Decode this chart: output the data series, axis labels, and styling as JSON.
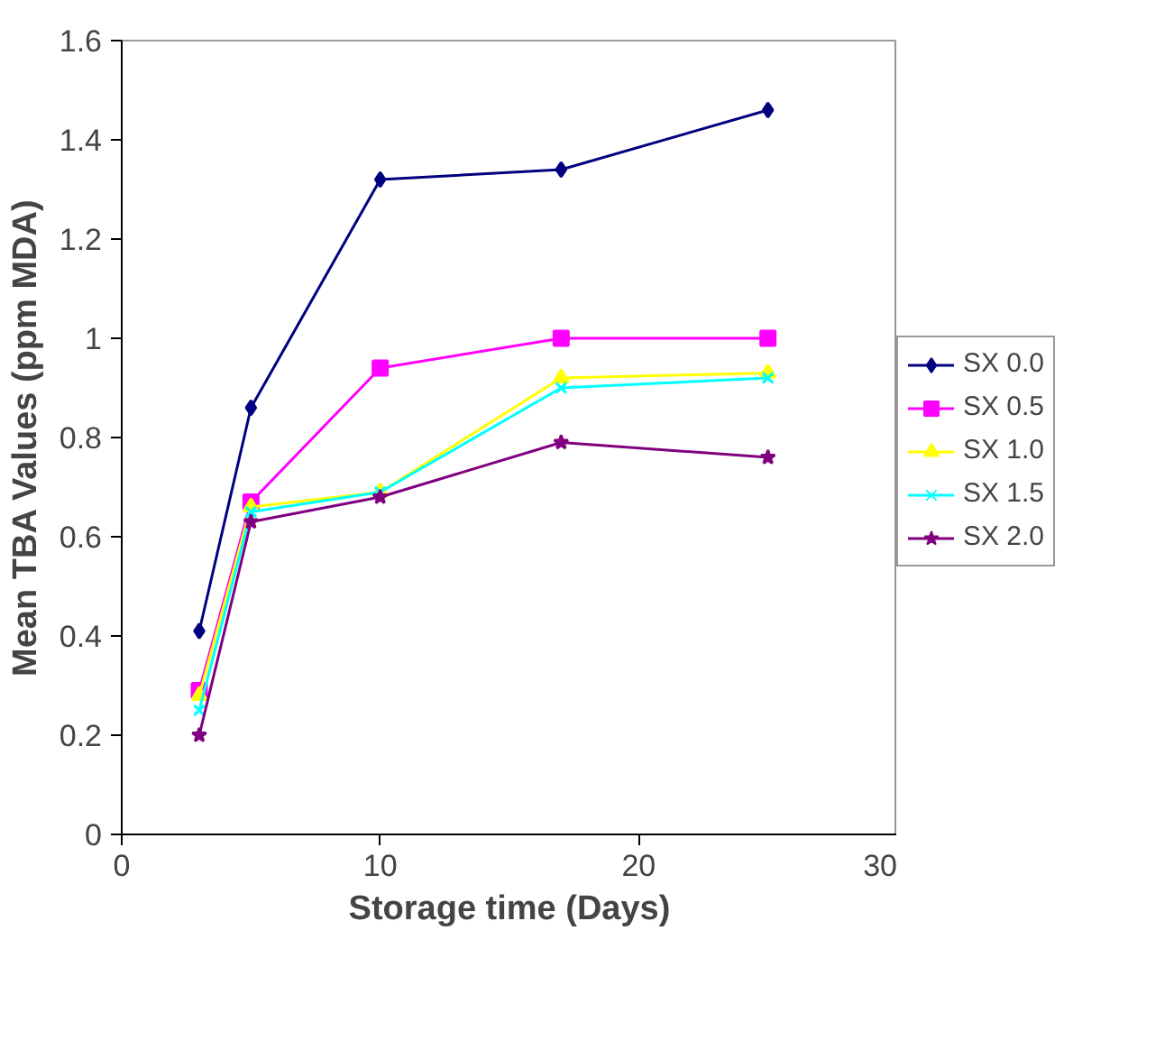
{
  "chart_data": {
    "type": "line",
    "xlabel": "Storage time (Days)",
    "ylabel": "Mean TBA Values (ppm MDA)",
    "x": [
      3,
      5,
      10,
      17,
      25
    ],
    "series": [
      {
        "name": "SX 0.0",
        "color": "#000080",
        "marker": "diamond",
        "values": [
          0.41,
          0.86,
          1.32,
          1.34,
          1.46
        ]
      },
      {
        "name": "SX 0.5",
        "color": "#ff00ff",
        "marker": "square",
        "values": [
          0.29,
          0.67,
          0.94,
          1.0,
          1.0
        ]
      },
      {
        "name": "SX 1.0",
        "color": "#ffff00",
        "marker": "triangle",
        "values": [
          0.28,
          0.66,
          0.69,
          0.92,
          0.93
        ]
      },
      {
        "name": "SX 1.5",
        "color": "#00ffff",
        "marker": "cross",
        "values": [
          0.25,
          0.65,
          0.69,
          0.9,
          0.92
        ]
      },
      {
        "name": "SX 2.0",
        "color": "#800080",
        "marker": "star",
        "values": [
          0.2,
          0.63,
          0.68,
          0.79,
          0.76
        ]
      }
    ],
    "xlim": [
      0,
      30
    ],
    "xticks": [
      0,
      10,
      20,
      30
    ],
    "ylim": [
      0,
      1.6
    ],
    "yticks": [
      0,
      {
        "value": 0.2,
        "label": "0.2"
      },
      {
        "value": 0.4,
        "label": "0.4"
      },
      {
        "value": 0.6,
        "label": "0.6"
      },
      {
        "value": 0.8,
        "label": "0.8"
      },
      1,
      {
        "value": 1.2,
        "label": "1.2"
      },
      {
        "value": 1.4,
        "label": "1.4"
      },
      {
        "value": 1.6,
        "label": "1.6"
      }
    ],
    "grid": false,
    "legend": "right",
    "line_style": "solid"
  }
}
